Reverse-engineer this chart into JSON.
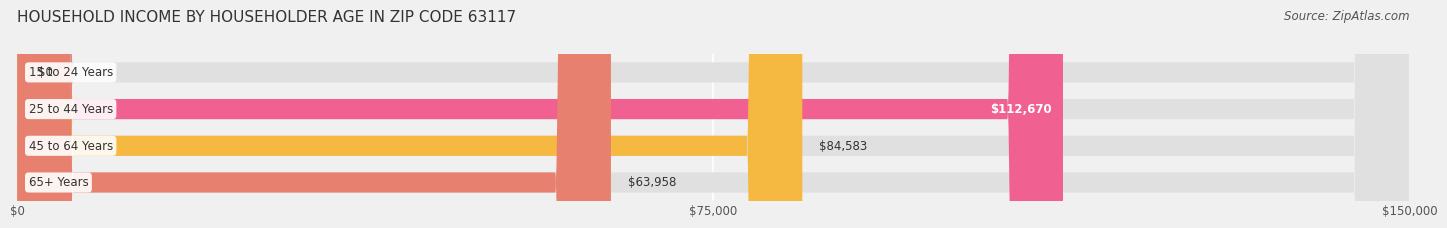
{
  "title": "HOUSEHOLD INCOME BY HOUSEHOLDER AGE IN ZIP CODE 63117",
  "source": "Source: ZipAtlas.com",
  "categories": [
    "15 to 24 Years",
    "25 to 44 Years",
    "45 to 64 Years",
    "65+ Years"
  ],
  "values": [
    0,
    112670,
    84583,
    63958
  ],
  "bar_colors": [
    "#a8a8d8",
    "#f06090",
    "#f5b942",
    "#e88070"
  ],
  "label_texts": [
    "$0",
    "$112,670",
    "$84,583",
    "$63,958"
  ],
  "xlim": [
    0,
    150000
  ],
  "xtick_labels": [
    "$0",
    "$75,000",
    "$150,000"
  ],
  "bg_color": "#f0f0f0",
  "bar_bg_color": "#e0e0e0",
  "title_fontsize": 11,
  "source_fontsize": 8.5,
  "label_fontsize": 8.5,
  "category_fontsize": 8.5,
  "tick_fontsize": 8.5
}
